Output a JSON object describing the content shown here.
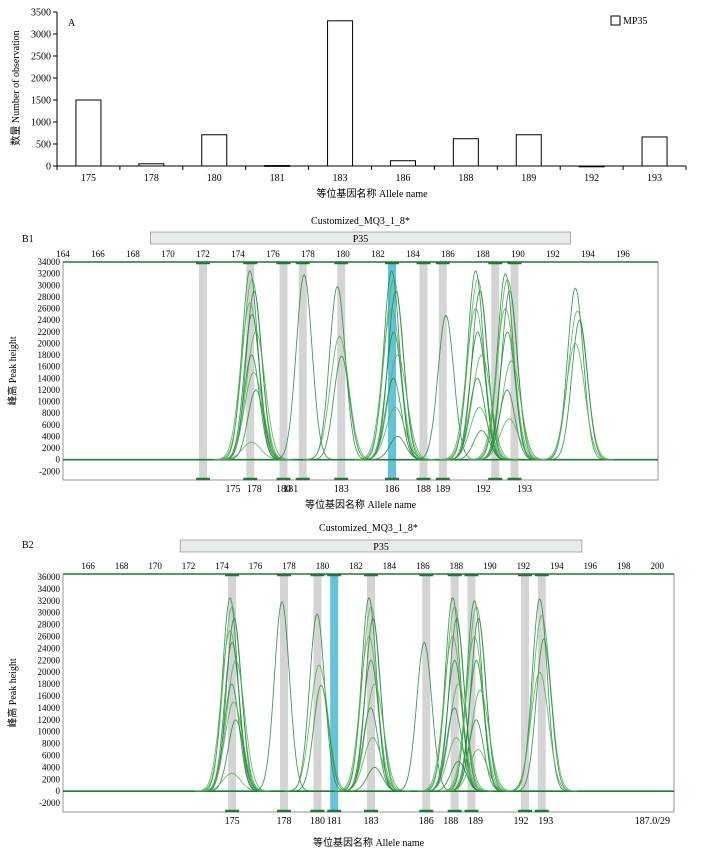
{
  "colors": {
    "trace": "#1e8a3a",
    "trace_light": "#4caf50",
    "bin": "#cccccc",
    "bin_selected": "#5bc0d8",
    "range_bar": "#e8ece8",
    "marker": "#1f7a33"
  },
  "chart_data": [
    {
      "type": "bar",
      "panel_label": "A",
      "categories": [
        "175",
        "178",
        "180",
        "181",
        "183",
        "186",
        "188",
        "189",
        "192",
        "193"
      ],
      "series": [
        {
          "name": "MP35",
          "values": [
            1500,
            50,
            710,
            10,
            3300,
            120,
            620,
            710,
            0,
            660
          ]
        }
      ],
      "ylim": [
        0,
        3500
      ],
      "yticks": [
        "0",
        "500",
        "1000",
        "1500",
        "2000",
        "2500",
        "3000",
        "3500"
      ],
      "ylabel": "数量 Number of observation",
      "xlabel": "等位基因名称 Allele name",
      "legend": "top-right"
    },
    {
      "type": "line",
      "panel_label": "B1",
      "title": "Customized_MQ3_1_8*",
      "range_label": "P35",
      "range": [
        169,
        193
      ],
      "xlim": [
        164,
        198
      ],
      "xticks": [
        "164",
        "166",
        "168",
        "170",
        "172",
        "174",
        "176",
        "178",
        "180",
        "182",
        "184",
        "186",
        "188",
        "190",
        "192",
        "194",
        "196"
      ],
      "ylim": [
        -3500,
        34000
      ],
      "yticks": [
        "-2000",
        "0",
        "2000",
        "4000",
        "6000",
        "8000",
        "10000",
        "12000",
        "14000",
        "16000",
        "18000",
        "20000",
        "22000",
        "24000",
        "26000",
        "28000",
        "30000",
        "32000",
        "34000"
      ],
      "ylabel": "峰高 Peak height",
      "xlabel": "等位基因名称 Allele name",
      "bins": [
        "175",
        "178",
        "180",
        "181",
        "183",
        "186",
        "188",
        "189",
        "192",
        "193"
      ],
      "selected_bin": "186",
      "peaks": [
        {
          "x": 174.8,
          "heights": [
            32500,
            31000,
            29000,
            27000,
            25000,
            22000,
            18000,
            15000,
            12000,
            3000
          ]
        },
        {
          "x": 177.9,
          "heights": [
            31800
          ]
        },
        {
          "x": 179.8,
          "heights": [
            29800,
            21200,
            17800
          ]
        },
        {
          "x": 182.9,
          "heights": [
            32500,
            31000,
            29000,
            26000,
            22000,
            18000,
            14000,
            9000,
            4000
          ]
        },
        {
          "x": 186.0,
          "heights": [
            24800
          ]
        },
        {
          "x": 187.7,
          "heights": [
            32500,
            31000,
            29000,
            26000,
            22000,
            18000,
            14000,
            9000,
            5000
          ]
        },
        {
          "x": 189.4,
          "heights": [
            32000,
            31000,
            29000,
            26000,
            22000,
            17000,
            12000,
            7000
          ]
        },
        {
          "x": 193.4,
          "heights": [
            29500,
            25600,
            24000,
            20000
          ]
        }
      ]
    },
    {
      "type": "line",
      "panel_label": "B2",
      "title": "Customized_MQ3_1_8*",
      "range_label": "P35",
      "range": [
        171.5,
        195.5
      ],
      "xlim": [
        164.5,
        201
      ],
      "xticks": [
        "166",
        "168",
        "170",
        "172",
        "174",
        "176",
        "178",
        "180",
        "182",
        "184",
        "186",
        "188",
        "190",
        "192",
        "194",
        "196",
        "198",
        "200"
      ],
      "ylim": [
        -3500,
        36500
      ],
      "yticks": [
        "-2000",
        "0",
        "2000",
        "4000",
        "6000",
        "8000",
        "10000",
        "12000",
        "14000",
        "16000",
        "18000",
        "20000",
        "22000",
        "24000",
        "26000",
        "28000",
        "30000",
        "32000",
        "34000",
        "36000"
      ],
      "ylabel": "峰高 Peak height",
      "xlabel": "等位基因名称 Allele name",
      "corner_label": "187.0/29",
      "bins": [
        "175",
        "178",
        "180",
        "181",
        "183",
        "186",
        "188",
        "189",
        "192",
        "193"
      ],
      "selected_bin": "181",
      "peaks": [
        {
          "x": 174.6,
          "heights": [
            32500,
            31000,
            29000,
            27000,
            25000,
            22000,
            18000,
            15000,
            12000,
            3000
          ]
        },
        {
          "x": 177.7,
          "heights": [
            31800
          ]
        },
        {
          "x": 179.8,
          "heights": [
            29800,
            21200,
            17800
          ]
        },
        {
          "x": 182.9,
          "heights": [
            32500,
            31000,
            29000,
            26000,
            22000,
            18000,
            14000,
            9000,
            4000
          ]
        },
        {
          "x": 186.2,
          "heights": [
            25000
          ]
        },
        {
          "x": 187.9,
          "heights": [
            32500,
            31000,
            29000,
            26000,
            22000,
            18000,
            14000,
            9000,
            5000
          ]
        },
        {
          "x": 189.2,
          "heights": [
            32000,
            31000,
            29000,
            26000,
            22000,
            17000,
            12000,
            7000
          ]
        },
        {
          "x": 193.1,
          "heights": [
            32300,
            29500,
            25600,
            20000
          ]
        }
      ]
    }
  ]
}
